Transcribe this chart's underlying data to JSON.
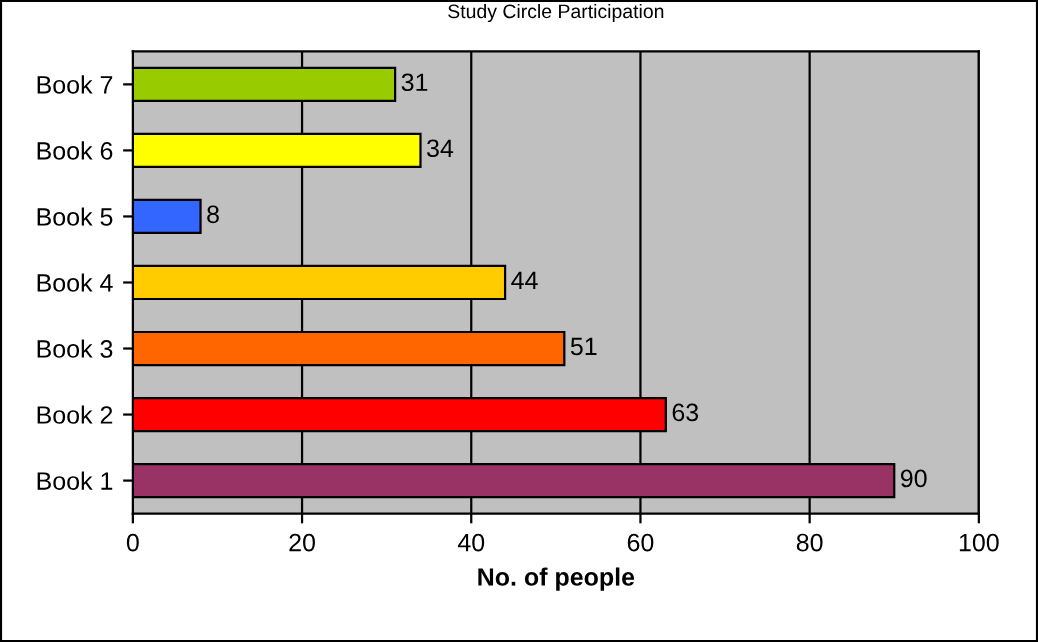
{
  "chart_data": {
    "type": "bar",
    "orientation": "horizontal",
    "title": "Study Circle Participation",
    "xlabel": "No. of people",
    "categories": [
      "Book 7",
      "Book 6",
      "Book 5",
      "Book 4",
      "Book 3",
      "Book 2",
      "Book 1"
    ],
    "values": [
      31,
      34,
      8,
      44,
      51,
      63,
      90
    ],
    "colors": [
      "#99cc00",
      "#ffff00",
      "#3366ff",
      "#ffcc00",
      "#ff6600",
      "#ff0000",
      "#993366"
    ],
    "xlim": [
      0,
      100
    ],
    "xticks": [
      0,
      20,
      40,
      60,
      80,
      100
    ],
    "grid": "x",
    "data_labels": true
  }
}
